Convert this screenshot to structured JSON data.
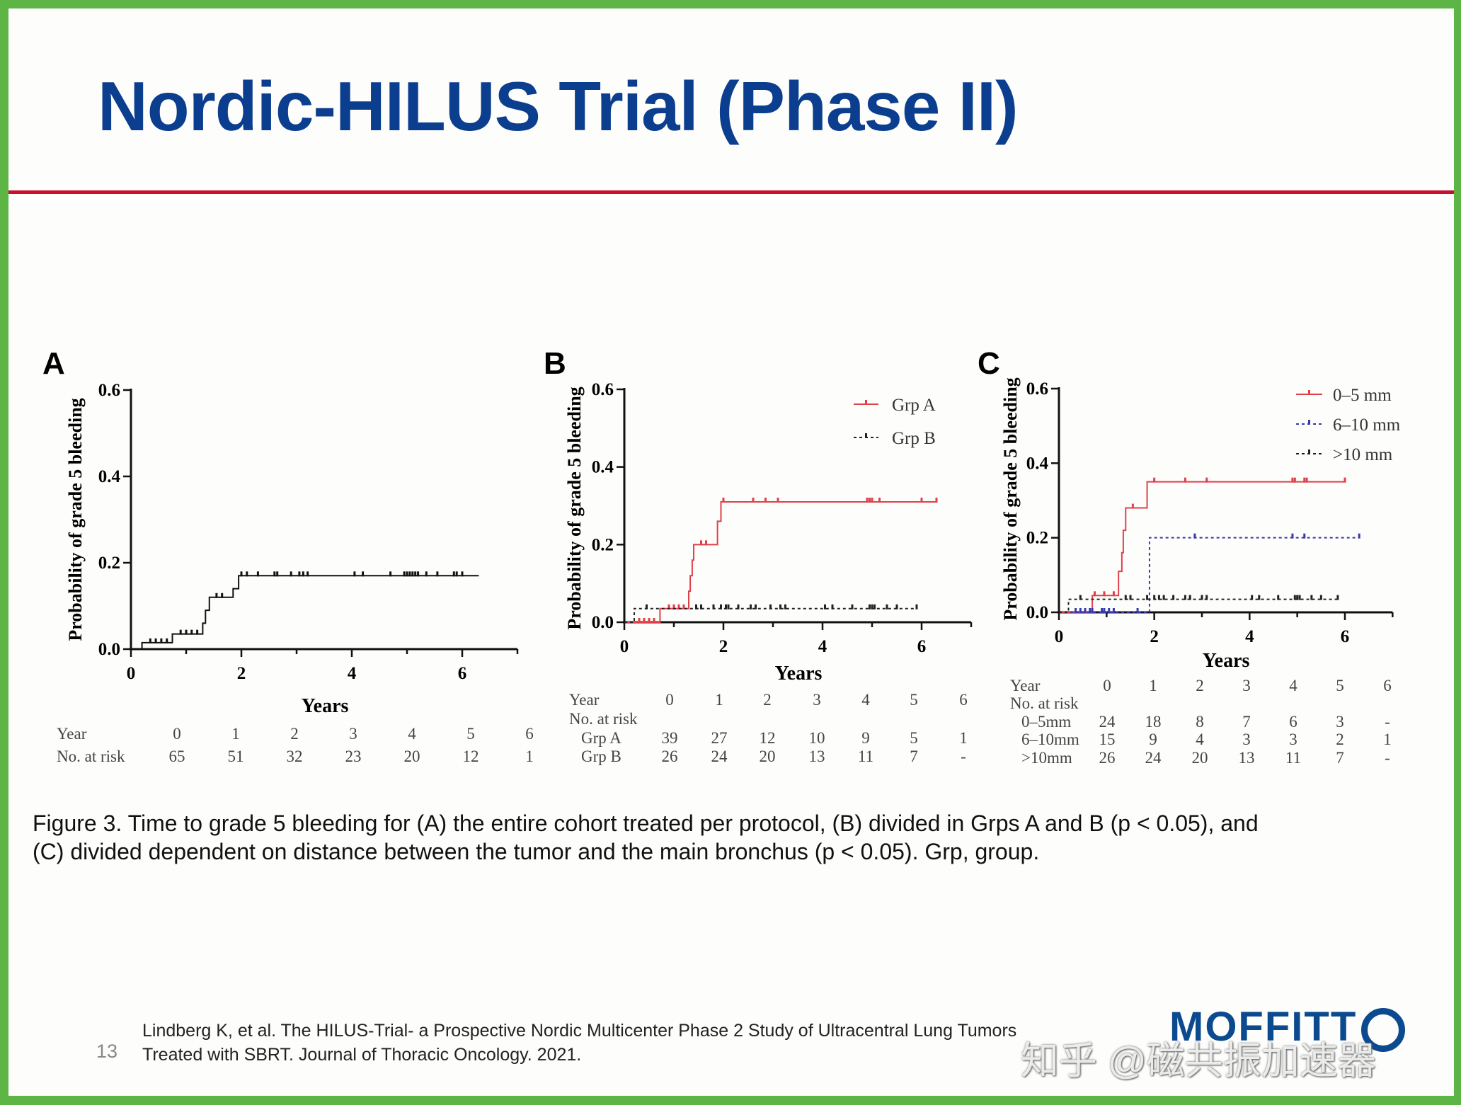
{
  "slide": {
    "title": "Nordic-HILUS Trial (Phase II)",
    "caption_line1": "Figure 3. Time to grade 5 bleeding for (A) the entire cohort treated per protocol, (B) divided in Grps A and B (p < 0.05), and",
    "caption_line2": "(C) divided dependent on distance between the tumor and the main bronchus (p < 0.05). Grp, group.",
    "citation_line1": "Lindberg K, et al. The HILUS-Trial- a Prospective Nordic Multicenter Phase 2 Study of Ultracentral Lung Tumors",
    "citation_line2": "Treated with SBRT. Journal of Thoracic Oncology. 2021.",
    "page_number": "13",
    "logo_text": "MOFFITT",
    "watermark": "知乎 @磁共振加速器",
    "colors": {
      "title": "#0b3e8e",
      "rule": "#c8102e",
      "border": "#5db545"
    }
  },
  "chart_data": [
    {
      "type": "line",
      "panel": "A",
      "xlabel": "Years",
      "ylabel": "Probability of grade 5 bleeding",
      "xlim": [
        0,
        7
      ],
      "ylim": [
        0,
        0.6
      ],
      "xticks": [
        "0",
        "2",
        "4",
        "6"
      ],
      "yticks": [
        "0.0",
        "0.2",
        "0.4",
        "0.6"
      ],
      "series": [
        {
          "color": "#111111",
          "dash": false,
          "steps": [
            [
              0,
              0
            ],
            [
              0.2,
              0.015
            ],
            [
              0.75,
              0.035
            ],
            [
              1.3,
              0.06
            ],
            [
              1.35,
              0.09
            ],
            [
              1.42,
              0.12
            ],
            [
              1.85,
              0.14
            ],
            [
              1.95,
              0.17
            ],
            [
              6.3,
              0.17
            ]
          ],
          "censors": [
            0.35,
            0.45,
            0.55,
            0.65,
            0.9,
            1.0,
            1.1,
            1.2,
            1.55,
            1.65,
            2.0,
            2.1,
            2.3,
            2.6,
            2.65,
            2.9,
            3.05,
            3.12,
            3.2,
            4.05,
            4.2,
            4.7,
            4.95,
            5.0,
            5.05,
            5.1,
            5.15,
            5.2,
            5.35,
            5.55,
            5.85,
            5.9,
            6.0
          ]
        }
      ],
      "risk_table": {
        "year_label": "Year",
        "years": [
          "0",
          "1",
          "2",
          "3",
          "4",
          "5",
          "6"
        ],
        "header": "No. at risk",
        "rows": [
          {
            "label": "No. at risk",
            "values": [
              "65",
              "51",
              "32",
              "23",
              "20",
              "12",
              "1"
            ]
          }
        ]
      }
    },
    {
      "type": "line",
      "panel": "B",
      "xlabel": "Years",
      "ylabel": "Probability of grade 5 bleeding",
      "xlim": [
        0,
        7
      ],
      "ylim": [
        0,
        0.6
      ],
      "xticks": [
        "0",
        "2",
        "4",
        "6"
      ],
      "yticks": [
        "0.0",
        "0.2",
        "0.4",
        "0.6"
      ],
      "legend": "top-right",
      "series": [
        {
          "name": "Grp A",
          "color": "#e0404a",
          "dash": false,
          "steps": [
            [
              0,
              0
            ],
            [
              0.72,
              0.035
            ],
            [
              1.3,
              0.08
            ],
            [
              1.33,
              0.12
            ],
            [
              1.37,
              0.16
            ],
            [
              1.4,
              0.2
            ],
            [
              1.88,
              0.26
            ],
            [
              1.95,
              0.31
            ],
            [
              6.3,
              0.31
            ]
          ],
          "censors": [
            0.3,
            0.4,
            0.5,
            0.6,
            0.9,
            1.0,
            1.1,
            1.2,
            1.55,
            1.65,
            2.0,
            2.6,
            2.85,
            3.1,
            4.9,
            4.95,
            5.0,
            5.15,
            6.0,
            6.3
          ]
        },
        {
          "name": "Grp B",
          "color": "#222222",
          "dash": true,
          "steps": [
            [
              0,
              0
            ],
            [
              0.2,
              0.035
            ],
            [
              5.9,
              0.035
            ]
          ],
          "censors": [
            0.45,
            1.45,
            1.55,
            1.8,
            1.95,
            2.05,
            2.1,
            2.3,
            2.55,
            2.65,
            2.95,
            3.15,
            3.25,
            4.05,
            4.2,
            4.6,
            4.95,
            5.0,
            5.05,
            5.3,
            5.5,
            5.9
          ]
        }
      ],
      "risk_table": {
        "year_label": "Year",
        "years": [
          "0",
          "1",
          "2",
          "3",
          "4",
          "5",
          "6"
        ],
        "header": "No. at risk",
        "rows": [
          {
            "label": "Grp A",
            "values": [
              "39",
              "27",
              "12",
              "10",
              "9",
              "5",
              "1"
            ]
          },
          {
            "label": "Grp B",
            "values": [
              "26",
              "24",
              "20",
              "13",
              "11",
              "7",
              "-"
            ]
          }
        ]
      }
    },
    {
      "type": "line",
      "panel": "C",
      "xlabel": "Years",
      "ylabel": "Probability of grade 5 bleeding",
      "xlim": [
        0,
        7
      ],
      "ylim": [
        0,
        0.6
      ],
      "xticks": [
        "0",
        "2",
        "4",
        "6"
      ],
      "yticks": [
        "0.0",
        "0.2",
        "0.4",
        "0.6"
      ],
      "legend": "top-right",
      "series": [
        {
          "name": "0–5 mm",
          "color": "#e0404a",
          "dash": false,
          "steps": [
            [
              0,
              0
            ],
            [
              0.7,
              0.045
            ],
            [
              1.25,
              0.11
            ],
            [
              1.32,
              0.16
            ],
            [
              1.35,
              0.22
            ],
            [
              1.4,
              0.28
            ],
            [
              1.85,
              0.35
            ],
            [
              6.0,
              0.35
            ]
          ],
          "censors": [
            0.75,
            0.95,
            1.15,
            1.55,
            2.0,
            2.65,
            3.1,
            4.9,
            4.95,
            5.15,
            5.2,
            6.0
          ]
        },
        {
          "name": "6–10 mm",
          "color": "#3a3aa8",
          "dash": true,
          "steps": [
            [
              0,
              0
            ],
            [
              1.9,
              0.2
            ],
            [
              6.3,
              0.2
            ]
          ],
          "censors": [
            0.35,
            0.45,
            0.55,
            0.65,
            0.7,
            0.9,
            0.95,
            1.05,
            1.15,
            1.65,
            2.85,
            4.9,
            5.15,
            6.3
          ]
        },
        {
          "name": ">10 mm",
          "color": "#222222",
          "dash": true,
          "steps": [
            [
              0,
              0
            ],
            [
              0.2,
              0.035
            ],
            [
              5.9,
              0.035
            ]
          ],
          "censors": [
            0.45,
            1.4,
            1.5,
            1.85,
            2.0,
            2.1,
            2.2,
            2.4,
            2.65,
            2.75,
            3.0,
            3.1,
            4.05,
            4.2,
            4.6,
            4.95,
            5.0,
            5.05,
            5.3,
            5.5,
            5.85
          ]
        }
      ],
      "risk_table": {
        "year_label": "Year",
        "years": [
          "0",
          "1",
          "2",
          "3",
          "4",
          "5",
          "6"
        ],
        "header": "No. at risk",
        "rows": [
          {
            "label": "0–5mm",
            "values": [
              "24",
              "18",
              "8",
              "7",
              "6",
              "3",
              "-"
            ]
          },
          {
            "label": "6–10mm",
            "values": [
              "15",
              "9",
              "4",
              "3",
              "3",
              "2",
              "1"
            ]
          },
          {
            "label": ">10mm",
            "values": [
              "26",
              "24",
              "20",
              "13",
              "11",
              "7",
              "-"
            ]
          }
        ]
      }
    }
  ]
}
